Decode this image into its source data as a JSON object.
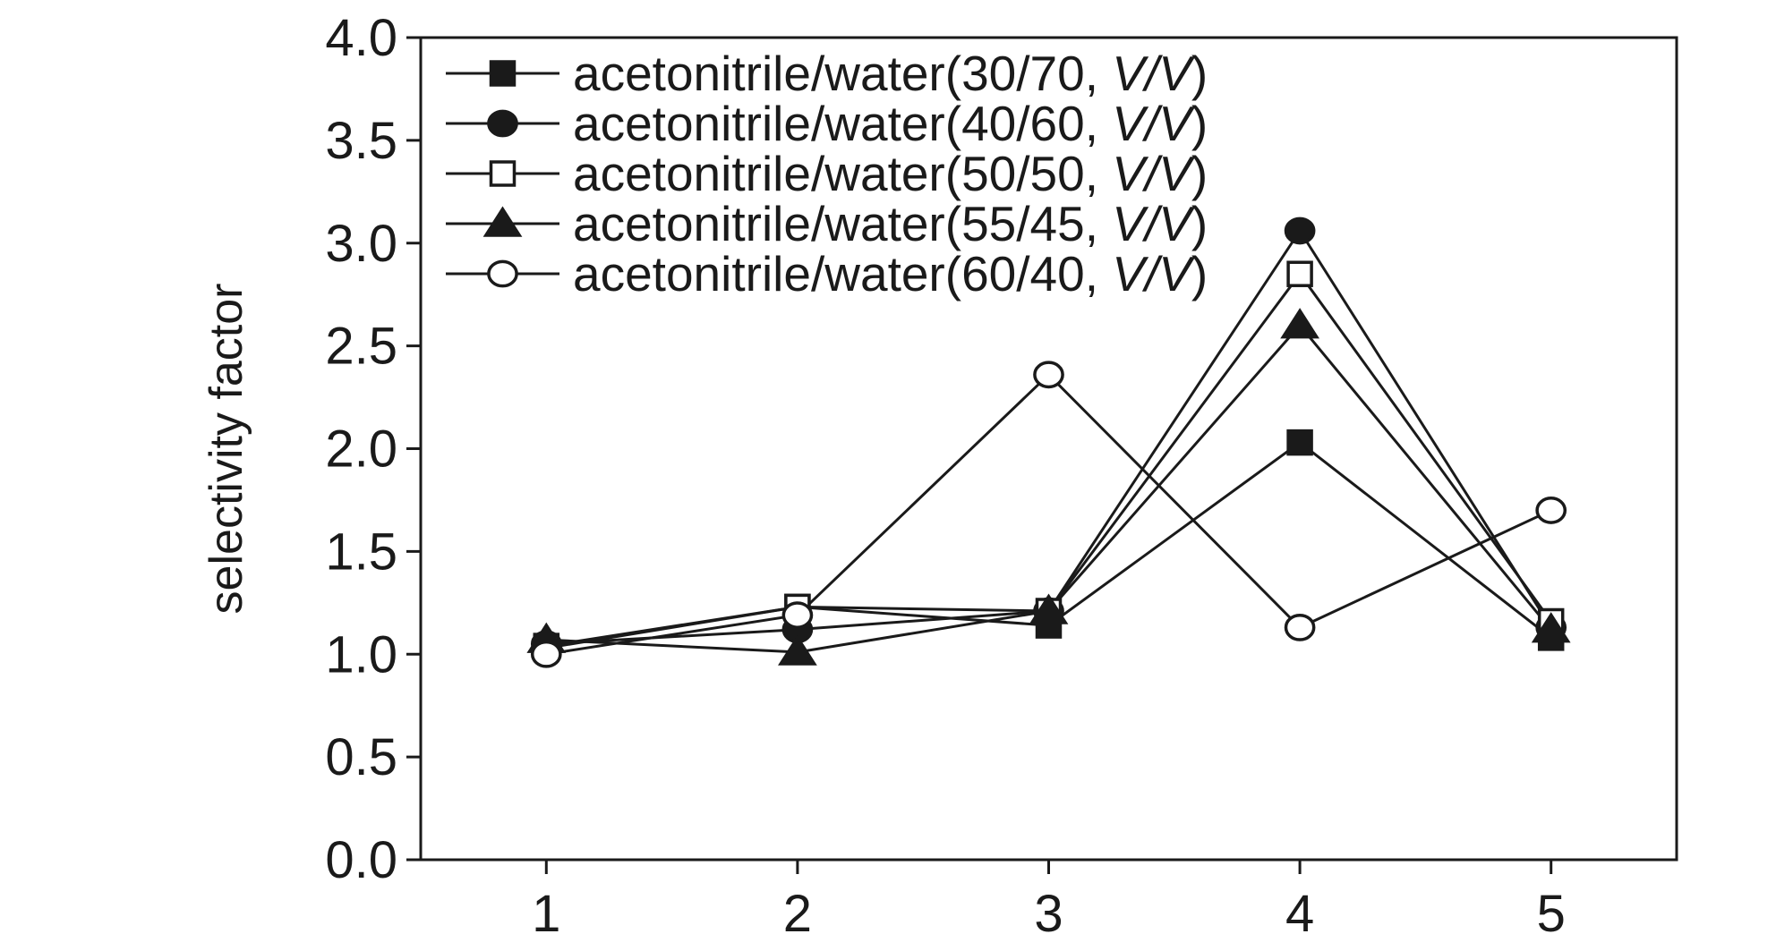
{
  "chart_data": {
    "type": "line",
    "title": "",
    "xlabel": "",
    "ylabel": "selectivity factor",
    "x": [
      1,
      2,
      3,
      4,
      5
    ],
    "x_tick_labels": [
      "1",
      "2",
      "3",
      "4",
      "5"
    ],
    "ylim": [
      0.0,
      4.0
    ],
    "y_ticks": [
      0.0,
      0.5,
      1.0,
      1.5,
      2.0,
      2.5,
      3.0,
      3.5,
      4.0
    ],
    "y_tick_labels": [
      "0.0",
      "0.5",
      "1.0",
      "1.5",
      "2.0",
      "2.5",
      "3.0",
      "3.5",
      "4.0"
    ],
    "grid": false,
    "legend_position": "top-left",
    "series": [
      {
        "name_prefix": "acetonitrile/water(30/70, ",
        "name_unit": "V/V",
        "name_suffix": ")",
        "marker": "filled-square",
        "values": [
          1.04,
          1.23,
          1.14,
          2.03,
          1.08
        ]
      },
      {
        "name_prefix": "acetonitrile/water(40/60, ",
        "name_unit": "V/V",
        "name_suffix": ")",
        "marker": "filled-circle",
        "values": [
          1.05,
          1.12,
          1.21,
          3.06,
          1.13
        ]
      },
      {
        "name_prefix": "acetonitrile/water(50/50, ",
        "name_unit": "V/V",
        "name_suffix": ")",
        "marker": "open-square",
        "values": [
          1.03,
          1.23,
          1.21,
          2.85,
          1.16
        ]
      },
      {
        "name_prefix": "acetonitrile/water(55/45, ",
        "name_unit": "V/V",
        "name_suffix": ")",
        "marker": "filled-triangle",
        "values": [
          1.07,
          1.01,
          1.21,
          2.6,
          1.12
        ]
      },
      {
        "name_prefix": "acetonitrile/water(60/40, ",
        "name_unit": "V/V",
        "name_suffix": ")",
        "marker": "open-circle",
        "values": [
          1.0,
          1.19,
          2.36,
          1.13,
          1.7
        ]
      }
    ],
    "colors": {
      "line": "#1a1a1a",
      "background": "#ffffff"
    }
  }
}
